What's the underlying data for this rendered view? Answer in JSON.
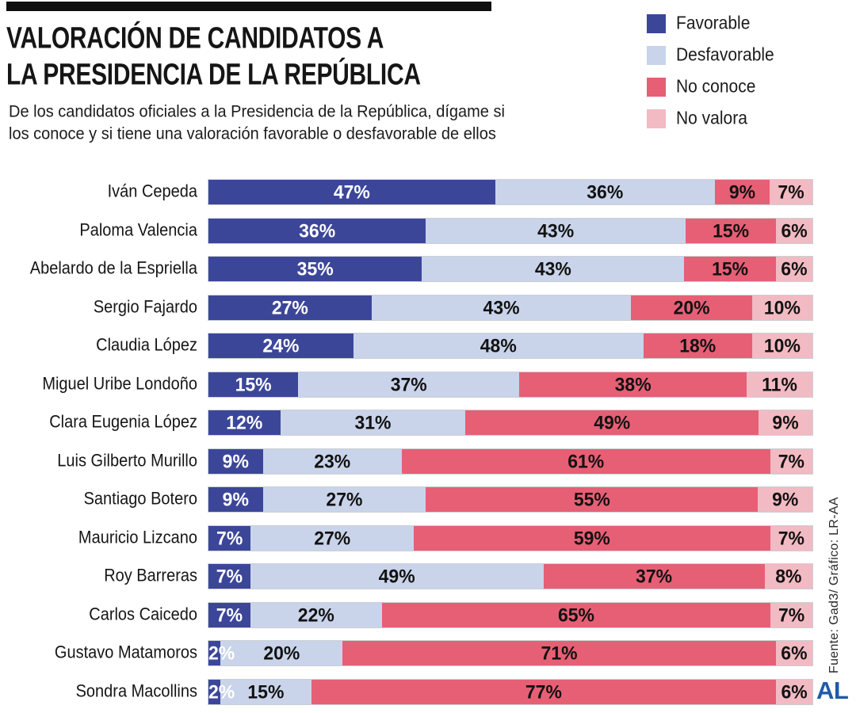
{
  "title": {
    "line1": "VALORACIÓN DE CANDIDATOS A",
    "line2": "LA PRESIDENCIA DE LA REPÚBLICA"
  },
  "subtitle": {
    "line1": "De los candidatos oficiales a la Presidencia de la República, dígame si",
    "line2": "los conoce y si tiene una valoración favorable o desfavorable de ellos"
  },
  "legend": [
    {
      "label": "Favorable",
      "color": "#3C4699"
    },
    {
      "label": "Desfavorable",
      "color": "#C9D4EA"
    },
    {
      "label": "No conoce",
      "color": "#E75F75"
    },
    {
      "label": "No valora",
      "color": "#F2BAC2"
    }
  ],
  "source": "Fuente:  Gad3/ Gráfico: LR-AA",
  "logo": {
    "text": "AL",
    "color": "#1E5BA9"
  },
  "chart_data": {
    "type": "bar",
    "orientation": "horizontal",
    "stacked": true,
    "unit": "%",
    "value_range": [
      0,
      100
    ],
    "grid": false,
    "legend_position": "top-right",
    "categories": [
      "Iván Cepeda",
      "Paloma Valencia",
      "Abelardo de la Espriella",
      "Sergio Fajardo",
      "Claudia López",
      "Miguel Uribe Londoño",
      "Clara Eugenia López",
      "Luis Gilberto Murillo",
      "Santiago Botero",
      "Mauricio Lizcano",
      "Roy Barreras",
      "Carlos Caicedo",
      "Gustavo Matamoros",
      "Sondra Macollins"
    ],
    "series": [
      {
        "name": "Favorable",
        "color": "#3C4699",
        "values": [
          47,
          36,
          35,
          27,
          24,
          15,
          12,
          9,
          9,
          7,
          7,
          7,
          2,
          2
        ]
      },
      {
        "name": "Desfavorable",
        "color": "#C9D4EA",
        "values": [
          36,
          43,
          43,
          43,
          48,
          37,
          31,
          23,
          27,
          27,
          49,
          22,
          20,
          15
        ]
      },
      {
        "name": "No conoce",
        "color": "#E75F75",
        "values": [
          9,
          15,
          15,
          20,
          18,
          38,
          49,
          61,
          55,
          59,
          37,
          65,
          71,
          77
        ]
      },
      {
        "name": "No valora",
        "color": "#F2BAC2",
        "values": [
          7,
          6,
          6,
          10,
          10,
          11,
          9,
          7,
          9,
          7,
          8,
          7,
          6,
          6
        ]
      }
    ]
  }
}
